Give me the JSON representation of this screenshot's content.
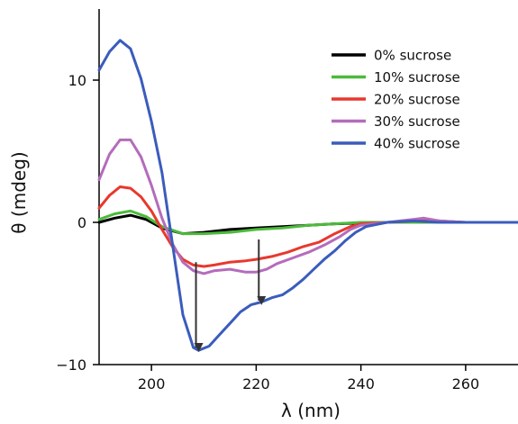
{
  "chart_data": {
    "type": "line",
    "xlabel": "λ (nm)",
    "ylabel": "θ (mdeg)",
    "xlim": [
      190,
      270
    ],
    "ylim": [
      -10,
      15
    ],
    "xticks": [
      200,
      220,
      240,
      260
    ],
    "yticks": [
      -10,
      0,
      10
    ],
    "xtick_labels": [
      "200",
      "220",
      "240",
      "260"
    ],
    "ytick_labels": [
      "−10",
      "0",
      "10"
    ],
    "grid": false,
    "legend_position": "top-right",
    "series": [
      {
        "name": "0% sucrose",
        "color": "#000000",
        "points": [
          [
            190,
            0.0
          ],
          [
            193,
            0.3
          ],
          [
            196,
            0.5
          ],
          [
            199,
            0.2
          ],
          [
            202,
            -0.4
          ],
          [
            206,
            -0.8
          ],
          [
            210,
            -0.7
          ],
          [
            215,
            -0.5
          ],
          [
            220,
            -0.4
          ],
          [
            225,
            -0.3
          ],
          [
            230,
            -0.2
          ],
          [
            235,
            -0.1
          ],
          [
            240,
            -0.05
          ],
          [
            245,
            0.0
          ],
          [
            250,
            0.0
          ],
          [
            255,
            0.0
          ],
          [
            260,
            0.0
          ],
          [
            265,
            0.0
          ],
          [
            270,
            0.0
          ]
        ]
      },
      {
        "name": "10% sucrose",
        "color": "#4cba3c",
        "points": [
          [
            190,
            0.2
          ],
          [
            193,
            0.6
          ],
          [
            196,
            0.8
          ],
          [
            199,
            0.4
          ],
          [
            202,
            -0.3
          ],
          [
            206,
            -0.8
          ],
          [
            210,
            -0.8
          ],
          [
            215,
            -0.7
          ],
          [
            220,
            -0.5
          ],
          [
            225,
            -0.4
          ],
          [
            230,
            -0.2
          ],
          [
            235,
            -0.1
          ],
          [
            240,
            0.0
          ],
          [
            245,
            0.0
          ],
          [
            250,
            0.0
          ],
          [
            255,
            0.0
          ],
          [
            260,
            0.0
          ],
          [
            265,
            0.0
          ],
          [
            270,
            0.0
          ]
        ]
      },
      {
        "name": "20% sucrose",
        "color": "#e8382e",
        "points": [
          [
            190,
            1.0
          ],
          [
            192,
            1.9
          ],
          [
            194,
            2.5
          ],
          [
            196,
            2.4
          ],
          [
            198,
            1.8
          ],
          [
            200,
            0.8
          ],
          [
            202,
            -0.5
          ],
          [
            204,
            -1.7
          ],
          [
            206,
            -2.6
          ],
          [
            208,
            -3.0
          ],
          [
            210,
            -3.1
          ],
          [
            212,
            -3.0
          ],
          [
            215,
            -2.8
          ],
          [
            218,
            -2.7
          ],
          [
            220,
            -2.6
          ],
          [
            223,
            -2.4
          ],
          [
            226,
            -2.1
          ],
          [
            229,
            -1.7
          ],
          [
            232,
            -1.4
          ],
          [
            235,
            -0.8
          ],
          [
            238,
            -0.3
          ],
          [
            240,
            -0.1
          ],
          [
            245,
            0.0
          ],
          [
            250,
            0.1
          ],
          [
            255,
            0.1
          ],
          [
            260,
            0.0
          ],
          [
            265,
            0.0
          ],
          [
            270,
            0.0
          ]
        ]
      },
      {
        "name": "30% sucrose",
        "color": "#b46cbc",
        "points": [
          [
            190,
            3.0
          ],
          [
            192,
            4.8
          ],
          [
            194,
            5.8
          ],
          [
            196,
            5.8
          ],
          [
            198,
            4.6
          ],
          [
            200,
            2.6
          ],
          [
            202,
            0.3
          ],
          [
            204,
            -1.5
          ],
          [
            206,
            -2.8
          ],
          [
            208,
            -3.4
          ],
          [
            210,
            -3.6
          ],
          [
            212,
            -3.4
          ],
          [
            215,
            -3.3
          ],
          [
            218,
            -3.5
          ],
          [
            220,
            -3.5
          ],
          [
            222,
            -3.3
          ],
          [
            224,
            -2.9
          ],
          [
            227,
            -2.5
          ],
          [
            230,
            -2.1
          ],
          [
            233,
            -1.6
          ],
          [
            236,
            -1.0
          ],
          [
            238,
            -0.5
          ],
          [
            240,
            -0.2
          ],
          [
            245,
            0.0
          ],
          [
            250,
            0.2
          ],
          [
            252,
            0.3
          ],
          [
            255,
            0.1
          ],
          [
            260,
            0.0
          ],
          [
            265,
            0.0
          ],
          [
            270,
            0.0
          ]
        ]
      },
      {
        "name": "40% sucrose",
        "color": "#3b5cbc",
        "points": [
          [
            190,
            10.7
          ],
          [
            192,
            12.0
          ],
          [
            194,
            12.8
          ],
          [
            196,
            12.2
          ],
          [
            198,
            10.1
          ],
          [
            200,
            7.1
          ],
          [
            202,
            3.5
          ],
          [
            204,
            -1.5
          ],
          [
            206,
            -6.5
          ],
          [
            208,
            -8.8
          ],
          [
            209,
            -9.0
          ],
          [
            211,
            -8.7
          ],
          [
            213,
            -7.9
          ],
          [
            215,
            -7.1
          ],
          [
            217,
            -6.3
          ],
          [
            219,
            -5.8
          ],
          [
            221,
            -5.6
          ],
          [
            223,
            -5.3
          ],
          [
            225,
            -5.1
          ],
          [
            227,
            -4.6
          ],
          [
            229,
            -4.0
          ],
          [
            231,
            -3.3
          ],
          [
            233,
            -2.6
          ],
          [
            235,
            -2.0
          ],
          [
            237,
            -1.3
          ],
          [
            239,
            -0.7
          ],
          [
            241,
            -0.3
          ],
          [
            245,
            0.0
          ],
          [
            250,
            0.1
          ],
          [
            255,
            0.0
          ],
          [
            260,
            0.0
          ],
          [
            265,
            0.0
          ],
          [
            270,
            0.0
          ]
        ]
      }
    ],
    "annotations": [
      {
        "type": "arrow",
        "from": [
          208.5,
          -2.8
        ],
        "to": [
          208.5,
          -8.8
        ]
      },
      {
        "type": "arrow",
        "from": [
          220.5,
          -1.2
        ],
        "to": [
          220.5,
          -5.5
        ]
      }
    ]
  }
}
